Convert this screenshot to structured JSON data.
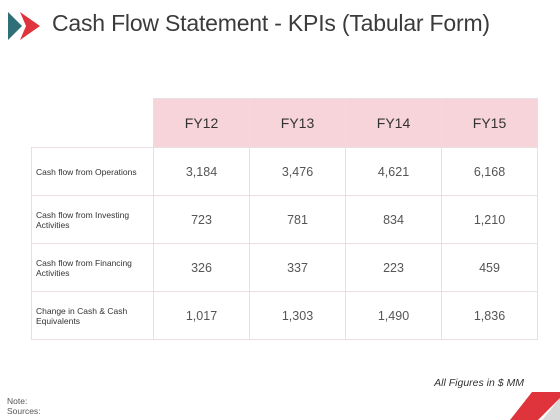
{
  "header": {
    "title": "Cash Flow Statement - KPIs (Tabular Form)",
    "icon_colors": [
      "#2f6f77",
      "#e0343d"
    ]
  },
  "table": {
    "columns": [
      "FY12",
      "FY13",
      "FY14",
      "FY15"
    ],
    "rows": [
      {
        "label": "Cash flow from Operations",
        "values": [
          "3,184",
          "3,476",
          "4,621",
          "6,168"
        ]
      },
      {
        "label": "Cash flow from Investing Activities",
        "values": [
          "723",
          "781",
          "834",
          "1,210"
        ]
      },
      {
        "label": "Cash flow from Financing Activities",
        "values": [
          "326",
          "337",
          "223",
          "459"
        ]
      },
      {
        "label": "Change in Cash & Cash Equivalents",
        "values": [
          "1,017",
          "1,303",
          "1,490",
          "1,836"
        ]
      }
    ],
    "header_fill": "#f7d3da"
  },
  "footer": {
    "figures_note": "All Figures in $ MM",
    "note_label": "Note:",
    "sources_label": "Sources:",
    "accent_colors": [
      "#e0343d",
      "#d9d9d9"
    ]
  }
}
